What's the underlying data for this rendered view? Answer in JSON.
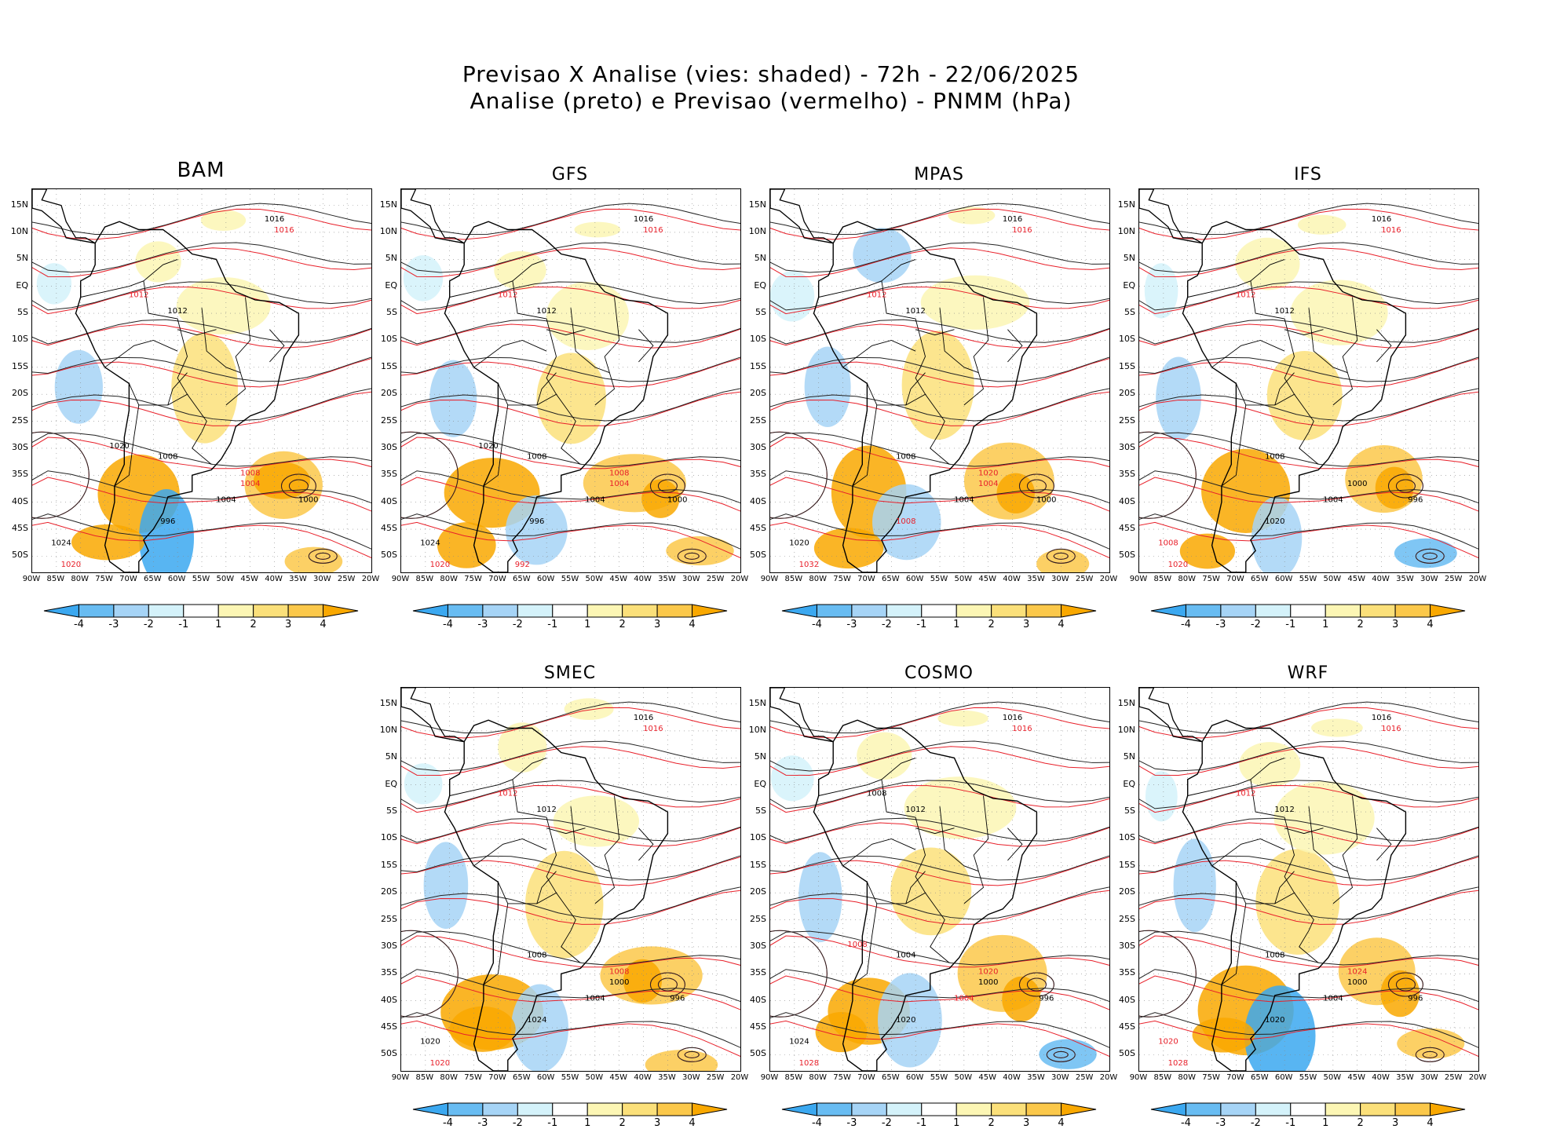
{
  "title": {
    "line1": "Previsao X Analise (vies: shaded) - 72h - 22/06/2025",
    "line2": "Analise (preto) e Previsao (vermelho) - PNMM (hPa)"
  },
  "lat_labels": [
    "15N",
    "10N",
    "5N",
    "EQ",
    "5S",
    "10S",
    "15S",
    "20S",
    "25S",
    "30S",
    "35S",
    "40S",
    "45S",
    "50S"
  ],
  "lon_labels": [
    "90W",
    "85W",
    "80W",
    "75W",
    "70W",
    "65W",
    "60W",
    "55W",
    "50W",
    "45W",
    "40W",
    "35W",
    "30W",
    "25W",
    "20W"
  ],
  "colorbar": {
    "labels": [
      "-4",
      "-3",
      "-2",
      "-1",
      "1",
      "2",
      "3",
      "4"
    ],
    "colors": [
      "#3ba8f0",
      "#68bcf2",
      "#a6d4f6",
      "#d4f2fa",
      "#ffffff",
      "#fcf6b4",
      "#fbe07a",
      "#fbc84a",
      "#f9a800"
    ]
  },
  "analysis_color": "#000000",
  "forecast_color": "#e8202a",
  "panels": [
    {
      "name": "BAM",
      "isobars": [
        {
          "value": "1016",
          "color": "black"
        },
        {
          "value": "1016",
          "color": "red"
        },
        {
          "value": "1012",
          "color": "black"
        },
        {
          "value": "1012",
          "color": "red"
        },
        {
          "value": "1008",
          "color": "black"
        },
        {
          "value": "1004",
          "color": "black"
        },
        {
          "value": "1004",
          "color": "red"
        },
        {
          "value": "1000",
          "color": "black"
        },
        {
          "value": "996",
          "color": "black"
        },
        {
          "value": "1024",
          "color": "black"
        },
        {
          "value": "1020",
          "color": "red"
        },
        {
          "value": "1008",
          "color": "red"
        },
        {
          "value": "1020",
          "color": "black"
        }
      ]
    },
    {
      "name": "GFS",
      "isobars": [
        {
          "value": "1016",
          "color": "black"
        },
        {
          "value": "1016",
          "color": "red"
        },
        {
          "value": "1012",
          "color": "black"
        },
        {
          "value": "1012",
          "color": "red"
        },
        {
          "value": "1008",
          "color": "black"
        },
        {
          "value": "1004",
          "color": "black"
        },
        {
          "value": "1004",
          "color": "red"
        },
        {
          "value": "1000",
          "color": "black"
        },
        {
          "value": "996",
          "color": "black"
        },
        {
          "value": "1024",
          "color": "black"
        },
        {
          "value": "1020",
          "color": "red"
        },
        {
          "value": "1008",
          "color": "red"
        },
        {
          "value": "1020",
          "color": "black"
        },
        {
          "value": "992",
          "color": "red"
        }
      ]
    },
    {
      "name": "MPAS",
      "isobars": [
        {
          "value": "1016",
          "color": "black"
        },
        {
          "value": "1016",
          "color": "red"
        },
        {
          "value": "1012",
          "color": "black"
        },
        {
          "value": "1012",
          "color": "red"
        },
        {
          "value": "1008",
          "color": "black"
        },
        {
          "value": "1004",
          "color": "black"
        },
        {
          "value": "1004",
          "color": "red"
        },
        {
          "value": "1000",
          "color": "black"
        },
        {
          "value": "1008",
          "color": "red"
        },
        {
          "value": "1020",
          "color": "black"
        },
        {
          "value": "1032",
          "color": "red"
        },
        {
          "value": "1020",
          "color": "red"
        }
      ]
    },
    {
      "name": "IFS",
      "isobars": [
        {
          "value": "1016",
          "color": "black"
        },
        {
          "value": "1016",
          "color": "red"
        },
        {
          "value": "1012",
          "color": "black"
        },
        {
          "value": "1012",
          "color": "red"
        },
        {
          "value": "1008",
          "color": "black"
        },
        {
          "value": "1004",
          "color": "black"
        },
        {
          "value": "1000",
          "color": "black"
        },
        {
          "value": "996",
          "color": "black"
        },
        {
          "value": "1020",
          "color": "black"
        },
        {
          "value": "1008",
          "color": "red"
        },
        {
          "value": "1020",
          "color": "red"
        }
      ]
    },
    {
      "name": "SMEC",
      "isobars": [
        {
          "value": "1016",
          "color": "black"
        },
        {
          "value": "1016",
          "color": "red"
        },
        {
          "value": "1012",
          "color": "black"
        },
        {
          "value": "1012",
          "color": "red"
        },
        {
          "value": "1008",
          "color": "black"
        },
        {
          "value": "1004",
          "color": "black"
        },
        {
          "value": "1000",
          "color": "black"
        },
        {
          "value": "996",
          "color": "black"
        },
        {
          "value": "1024",
          "color": "black"
        },
        {
          "value": "1020",
          "color": "black"
        },
        {
          "value": "1020",
          "color": "red"
        },
        {
          "value": "1008",
          "color": "red"
        }
      ]
    },
    {
      "name": "COSMO",
      "isobars": [
        {
          "value": "1016",
          "color": "black"
        },
        {
          "value": "1016",
          "color": "red"
        },
        {
          "value": "1012",
          "color": "black"
        },
        {
          "value": "1008",
          "color": "black"
        },
        {
          "value": "1004",
          "color": "black"
        },
        {
          "value": "1004",
          "color": "red"
        },
        {
          "value": "1000",
          "color": "black"
        },
        {
          "value": "996",
          "color": "black"
        },
        {
          "value": "1020",
          "color": "black"
        },
        {
          "value": "1024",
          "color": "black"
        },
        {
          "value": "1028",
          "color": "red"
        },
        {
          "value": "1020",
          "color": "red"
        },
        {
          "value": "1008",
          "color": "red"
        }
      ]
    },
    {
      "name": "WRF",
      "isobars": [
        {
          "value": "1016",
          "color": "black"
        },
        {
          "value": "1016",
          "color": "red"
        },
        {
          "value": "1012",
          "color": "black"
        },
        {
          "value": "1012",
          "color": "red"
        },
        {
          "value": "1008",
          "color": "black"
        },
        {
          "value": "1004",
          "color": "black"
        },
        {
          "value": "1000",
          "color": "black"
        },
        {
          "value": "996",
          "color": "black"
        },
        {
          "value": "1020",
          "color": "black"
        },
        {
          "value": "1020",
          "color": "red"
        },
        {
          "value": "1028",
          "color": "red"
        },
        {
          "value": "1024",
          "color": "red"
        }
      ]
    }
  ]
}
